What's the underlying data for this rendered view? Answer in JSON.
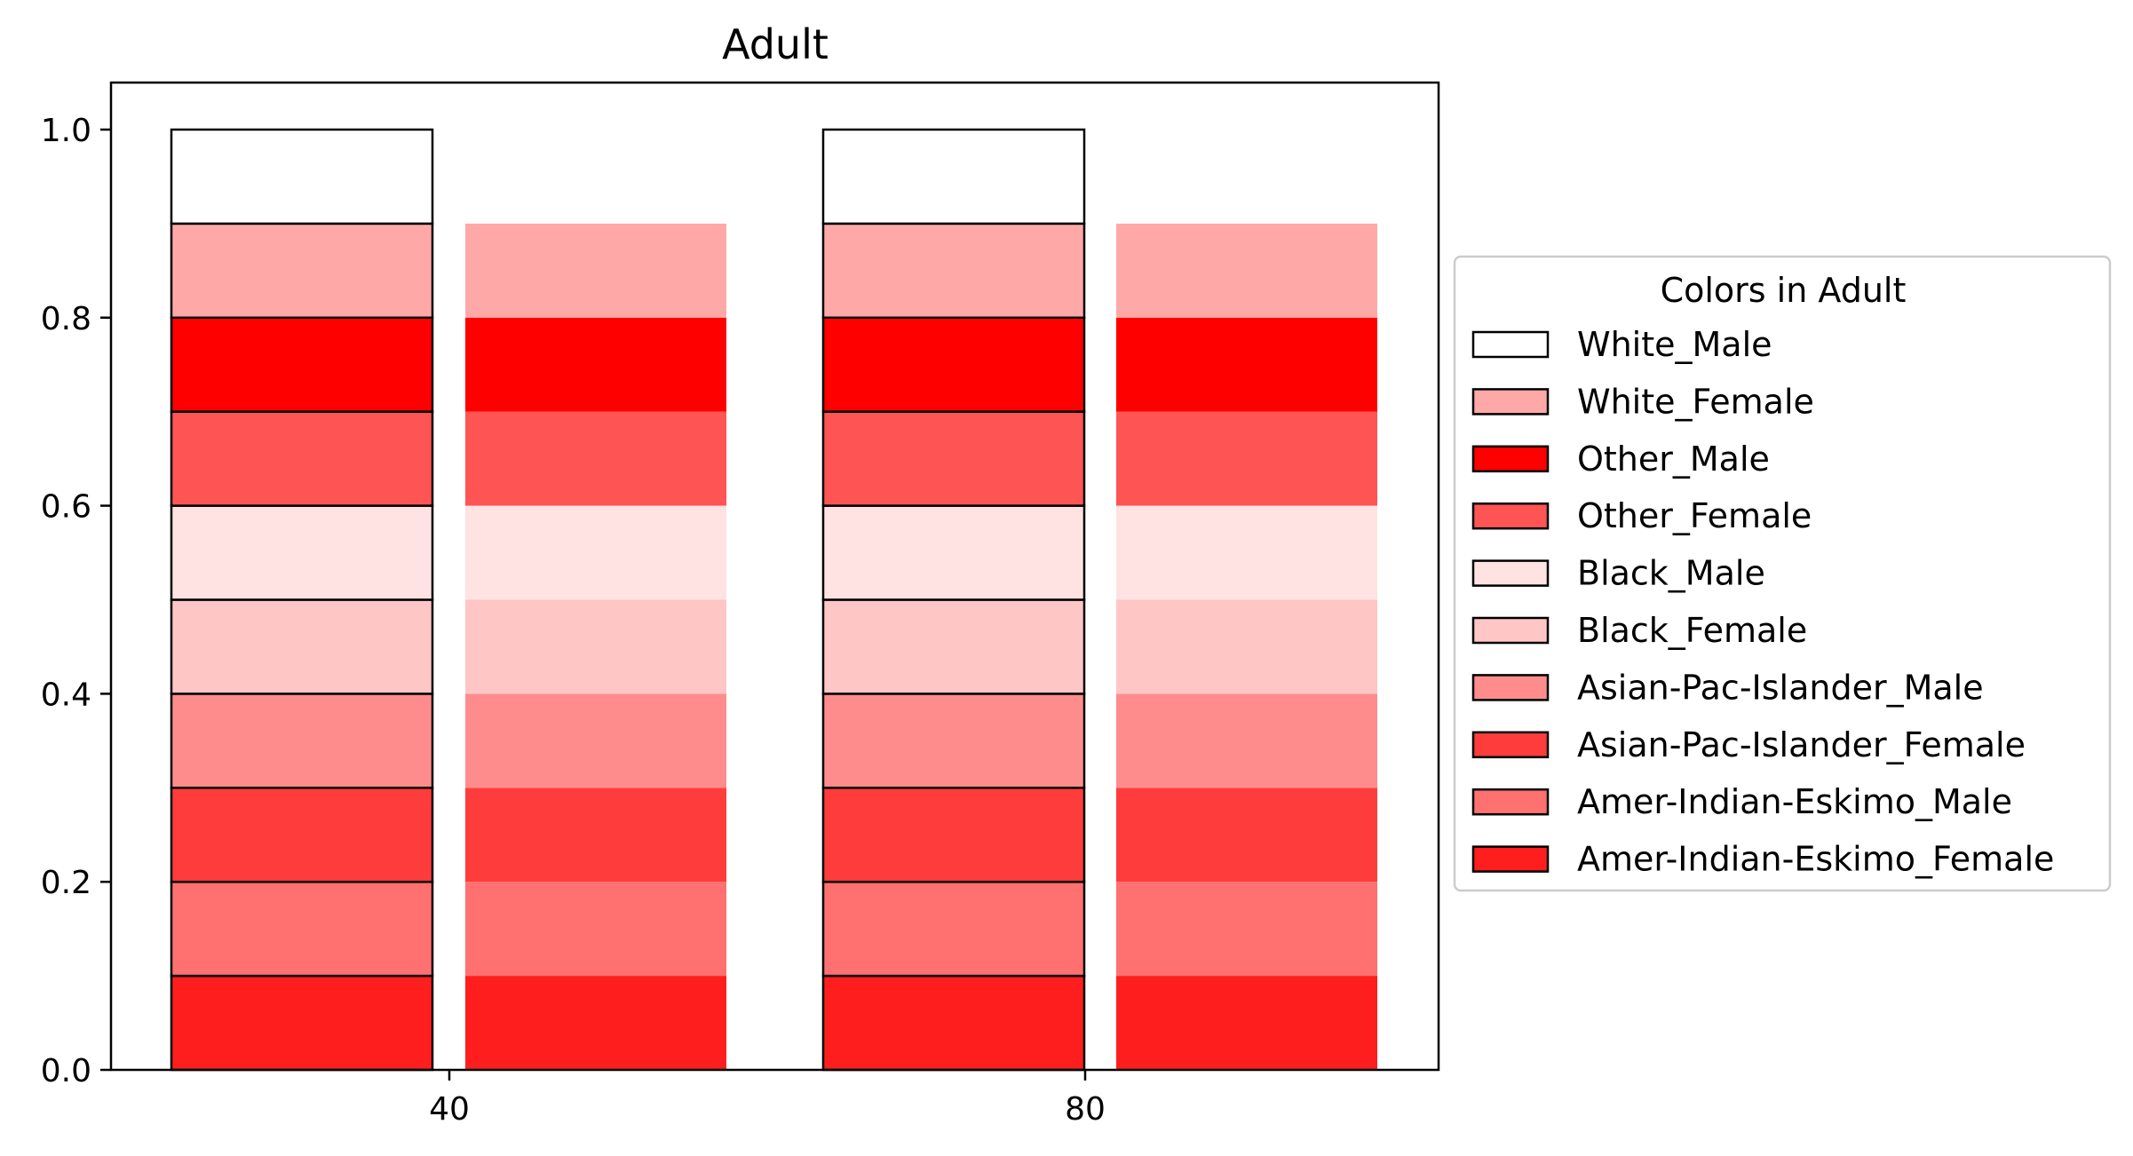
{
  "chart_data": {
    "type": "bar",
    "title": "Adult",
    "xlabel": "",
    "ylabel": "",
    "ylim": [
      0,
      1.05
    ],
    "yticks": [
      "0.0",
      "0.2",
      "0.4",
      "0.6",
      "0.8",
      "1.0"
    ],
    "group_labels": [
      "40",
      "80"
    ],
    "stack_order_bottom_to_top": [
      "Amer-Indian-Eskimo_Female",
      "Amer-Indian-Eskimo_Male",
      "Asian-Pac-Islander_Female",
      "Asian-Pac-Islander_Male",
      "Black_Female",
      "Black_Male",
      "Other_Female",
      "Other_Male",
      "White_Female",
      "White_Male"
    ],
    "bars": [
      {
        "group": "40",
        "outlined": true,
        "segment_height": 0.1,
        "top": 1.0
      },
      {
        "group": "40",
        "outlined": false,
        "segment_height": 0.1,
        "top": 0.9
      },
      {
        "group": "80",
        "outlined": true,
        "segment_height": 0.1,
        "top": 1.0
      },
      {
        "group": "80",
        "outlined": false,
        "segment_height": 0.1,
        "top": 0.9
      }
    ],
    "legend": {
      "title": "Colors in Adult",
      "placement": "right",
      "entries": [
        {
          "label": "White_Male",
          "color": "#ffffff"
        },
        {
          "label": "White_Female",
          "color": "#ffa8a8"
        },
        {
          "label": "Other_Male",
          "color": "#ff0000"
        },
        {
          "label": "Other_Female",
          "color": "#ff5454"
        },
        {
          "label": "Black_Male",
          "color": "#ffe2e2"
        },
        {
          "label": "Black_Female",
          "color": "#ffc6c6"
        },
        {
          "label": "Asian-Pac-Islander_Male",
          "color": "#ff8c8c"
        },
        {
          "label": "Asian-Pac-Islander_Female",
          "color": "#ff3c3c"
        },
        {
          "label": "Amer-Indian-Eskimo_Male",
          "color": "#ff7070"
        },
        {
          "label": "Amer-Indian-Eskimo_Female",
          "color": "#ff1e1e"
        }
      ]
    }
  }
}
